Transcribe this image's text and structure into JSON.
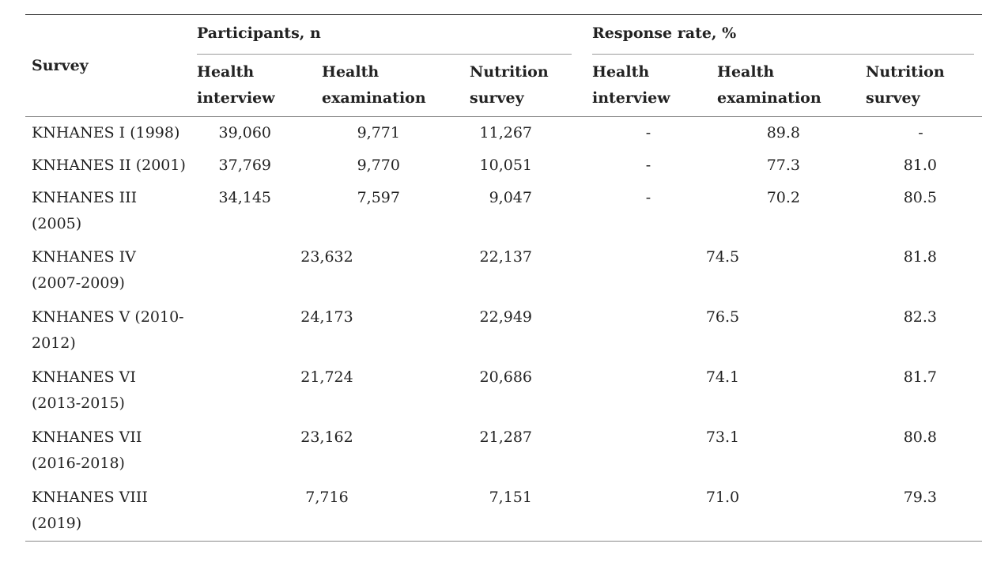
{
  "header": {
    "survey": "Survey",
    "participants_group": "Participants, n",
    "response_group": "Response rate, %",
    "sub": {
      "p_health_interview": [
        "Health",
        "interview"
      ],
      "p_health_exam": [
        "Health",
        "examination"
      ],
      "p_nutrition": [
        "Nutrition",
        "survey"
      ],
      "r_health_interview": [
        "Health",
        "interview"
      ],
      "r_health_exam": [
        "Health",
        "examination"
      ],
      "r_nutrition": [
        "Nutrition",
        "survey"
      ]
    }
  },
  "rows_split": [
    {
      "survey": "KNHANES I (1998)",
      "p_hi": "39,060",
      "p_he": "9,771",
      "p_ns": "11,267",
      "r_hi": "-",
      "r_he": "89.8",
      "r_ns": "-"
    },
    {
      "survey": "KNHANES II (2001)",
      "p_hi": "37,769",
      "p_he": "9,770",
      "p_ns": "10,051",
      "r_hi": "-",
      "r_he": "77.3",
      "r_ns": "81.0"
    },
    {
      "survey": "KNHANES III (2005)",
      "p_hi": "34,145",
      "p_he": "7,597",
      "p_ns": "9,047",
      "r_hi": "-",
      "r_he": "70.2",
      "r_ns": "80.5"
    }
  ],
  "rows_merged": [
    {
      "survey": "KNHANES IV (2007-2009)",
      "p_health": "23,632",
      "p_ns": "22,137",
      "r_health": "74.5",
      "r_ns": "81.8"
    },
    {
      "survey": "KNHANES V (2010-2012)",
      "p_health": "24,173",
      "p_ns": "22,949",
      "r_health": "76.5",
      "r_ns": "82.3"
    },
    {
      "survey": "KNHANES VI (2013-2015)",
      "p_health": "21,724",
      "p_ns": "20,686",
      "r_health": "74.1",
      "r_ns": "81.7"
    },
    {
      "survey": "KNHANES VII (2016-2018)",
      "p_health": "23,162",
      "p_ns": "21,287",
      "r_health": "73.1",
      "r_ns": "80.8"
    },
    {
      "survey": "KNHANES VIII (2019)",
      "p_health": "7,716",
      "p_ns": "7,151",
      "r_health": "71.0",
      "r_ns": "79.3"
    }
  ]
}
